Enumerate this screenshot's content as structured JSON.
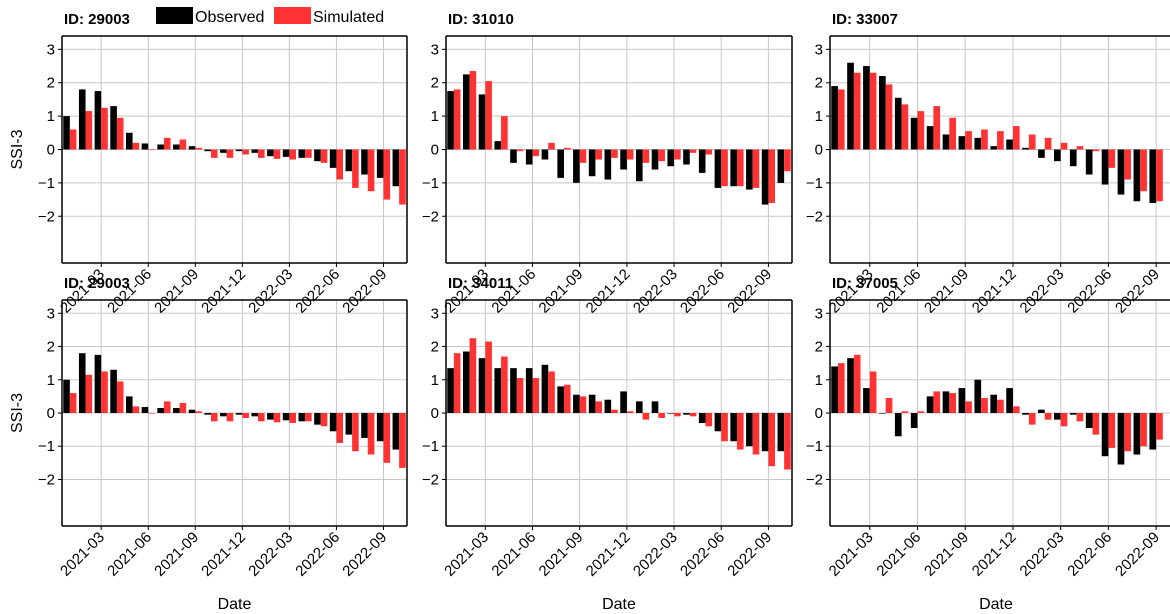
{
  "legend": {
    "entries": [
      {
        "label": "Observed",
        "color": "#000000"
      },
      {
        "label": "Simulated",
        "color": "#ff3333"
      }
    ]
  },
  "chart_data": [
    {
      "type": "bar",
      "title": "ID: 29003",
      "ylabel": "SSI-3",
      "xlabel": "",
      "ylim": [
        -3.4,
        3.4
      ],
      "yticks": [
        3,
        2,
        1,
        0,
        -1,
        -2
      ],
      "yticklabels": [
        "3",
        "2",
        "1",
        "0",
        "−1",
        "−2"
      ],
      "categories": [
        "2021-01",
        "2021-02",
        "2021-03",
        "2021-04",
        "2021-05",
        "2021-06",
        "2021-07",
        "2021-08",
        "2021-09",
        "2021-10",
        "2021-11",
        "2021-12",
        "2022-01",
        "2022-02",
        "2022-03",
        "2022-04",
        "2022-05",
        "2022-06",
        "2022-07",
        "2022-08",
        "2022-09",
        "2022-10"
      ],
      "xticklabels": [
        "2021-03",
        "2021-06",
        "2021-09",
        "2021-12",
        "2022-03",
        "2022-06",
        "2022-09"
      ],
      "xticks_at": [
        2,
        5,
        8,
        11,
        14,
        17,
        20
      ],
      "grid": true,
      "series": [
        {
          "name": "Observed",
          "color": "#000000",
          "values": [
            1.0,
            1.8,
            1.75,
            1.3,
            0.5,
            0.18,
            0.15,
            0.15,
            0.1,
            -0.05,
            -0.1,
            -0.05,
            -0.1,
            -0.2,
            -0.22,
            -0.25,
            -0.35,
            -0.55,
            -0.65,
            -0.75,
            -0.85,
            -1.1
          ]
        },
        {
          "name": "Simulated",
          "color": "#ff3333",
          "values": [
            0.6,
            1.15,
            1.25,
            0.95,
            0.2,
            0.0,
            0.35,
            0.3,
            0.05,
            -0.25,
            -0.25,
            -0.15,
            -0.25,
            -0.28,
            -0.3,
            -0.25,
            -0.4,
            -0.9,
            -1.15,
            -1.25,
            -1.5,
            -1.65
          ]
        }
      ]
    },
    {
      "type": "bar",
      "title": "ID: 31010",
      "ylabel": "",
      "xlabel": "",
      "ylim": [
        -3.4,
        3.4
      ],
      "yticks": [
        3,
        2,
        1,
        0,
        -1,
        -2
      ],
      "yticklabels": [
        "3",
        "2",
        "1",
        "0",
        "−1",
        "−2"
      ],
      "categories": [
        "2021-01",
        "2021-02",
        "2021-03",
        "2021-04",
        "2021-05",
        "2021-06",
        "2021-07",
        "2021-08",
        "2021-09",
        "2021-10",
        "2021-11",
        "2021-12",
        "2022-01",
        "2022-02",
        "2022-03",
        "2022-04",
        "2022-05",
        "2022-06",
        "2022-07",
        "2022-08",
        "2022-09",
        "2022-10"
      ],
      "xticklabels": [
        "2021-03",
        "2021-06",
        "2021-09",
        "2021-12",
        "2022-03",
        "2022-06",
        "2022-09"
      ],
      "xticks_at": [
        2,
        5,
        8,
        11,
        14,
        17,
        20
      ],
      "grid": true,
      "series": [
        {
          "name": "Observed",
          "color": "#000000",
          "values": [
            1.75,
            2.25,
            1.65,
            0.25,
            -0.4,
            -0.45,
            -0.3,
            -0.85,
            -1.0,
            -0.8,
            -0.9,
            -0.6,
            -0.95,
            -0.6,
            -0.5,
            -0.45,
            -0.7,
            -1.15,
            -1.1,
            -1.2,
            -1.65,
            -1.0
          ]
        },
        {
          "name": "Simulated",
          "color": "#ff3333",
          "values": [
            1.8,
            2.35,
            2.05,
            1.0,
            -0.05,
            -0.2,
            0.2,
            0.05,
            -0.4,
            -0.3,
            -0.25,
            -0.3,
            -0.4,
            -0.35,
            -0.3,
            -0.1,
            -0.15,
            -1.1,
            -1.1,
            -1.15,
            -1.6,
            -0.65
          ]
        }
      ]
    },
    {
      "type": "bar",
      "title": "ID: 33007",
      "ylabel": "",
      "xlabel": "",
      "ylim": [
        -3.4,
        3.4
      ],
      "yticks": [
        3,
        2,
        1,
        0,
        -1,
        -2
      ],
      "yticklabels": [
        "3",
        "2",
        "1",
        "0",
        "−1",
        "−2"
      ],
      "categories": [
        "2021-01",
        "2021-02",
        "2021-03",
        "2021-04",
        "2021-05",
        "2021-06",
        "2021-07",
        "2021-08",
        "2021-09",
        "2021-10",
        "2021-11",
        "2021-12",
        "2022-01",
        "2022-02",
        "2022-03",
        "2022-04",
        "2022-05",
        "2022-06",
        "2022-07",
        "2022-08",
        "2022-09"
      ],
      "xticklabels": [
        "2021-03",
        "2021-06",
        "2021-09",
        "2021-12",
        "2022-03",
        "2022-06",
        "2022-09"
      ],
      "xticks_at": [
        2,
        5,
        8,
        11,
        14,
        17,
        20
      ],
      "grid": true,
      "series": [
        {
          "name": "Observed",
          "color": "#000000",
          "values": [
            1.9,
            2.6,
            2.5,
            2.2,
            1.55,
            0.95,
            0.7,
            0.45,
            0.4,
            0.35,
            0.1,
            0.3,
            0.05,
            -0.25,
            -0.35,
            -0.5,
            -0.75,
            -1.05,
            -1.35,
            -1.55,
            -1.6
          ]
        },
        {
          "name": "Simulated",
          "color": "#ff3333",
          "values": [
            1.8,
            2.3,
            2.3,
            1.95,
            1.35,
            1.15,
            1.3,
            0.95,
            0.55,
            0.6,
            0.55,
            0.7,
            0.45,
            0.35,
            0.2,
            0.1,
            -0.05,
            -0.55,
            -0.9,
            -1.25,
            -1.55
          ]
        }
      ]
    },
    {
      "type": "bar",
      "title": "ID: 29003",
      "ylabel": "SSI-3",
      "xlabel": "Date",
      "ylim": [
        -3.4,
        3.4
      ],
      "yticks": [
        3,
        2,
        1,
        0,
        -1,
        -2
      ],
      "yticklabels": [
        "3",
        "2",
        "1",
        "0",
        "−1",
        "−2"
      ],
      "categories": [
        "2021-01",
        "2021-02",
        "2021-03",
        "2021-04",
        "2021-05",
        "2021-06",
        "2021-07",
        "2021-08",
        "2021-09",
        "2021-10",
        "2021-11",
        "2021-12",
        "2022-01",
        "2022-02",
        "2022-03",
        "2022-04",
        "2022-05",
        "2022-06",
        "2022-07",
        "2022-08",
        "2022-09",
        "2022-10"
      ],
      "xticklabels": [
        "2021-03",
        "2021-06",
        "2021-09",
        "2021-12",
        "2022-03",
        "2022-06",
        "2022-09"
      ],
      "xticks_at": [
        2,
        5,
        8,
        11,
        14,
        17,
        20
      ],
      "grid": true,
      "series": [
        {
          "name": "Observed",
          "color": "#000000",
          "values": [
            1.0,
            1.8,
            1.75,
            1.3,
            0.5,
            0.18,
            0.15,
            0.15,
            0.1,
            -0.05,
            -0.1,
            -0.05,
            -0.1,
            -0.2,
            -0.22,
            -0.25,
            -0.35,
            -0.55,
            -0.65,
            -0.75,
            -0.85,
            -1.1
          ]
        },
        {
          "name": "Simulated",
          "color": "#ff3333",
          "values": [
            0.6,
            1.15,
            1.25,
            0.95,
            0.2,
            0.0,
            0.35,
            0.3,
            0.05,
            -0.25,
            -0.25,
            -0.15,
            -0.25,
            -0.28,
            -0.3,
            -0.25,
            -0.4,
            -0.9,
            -1.15,
            -1.25,
            -1.5,
            -1.65
          ]
        }
      ]
    },
    {
      "type": "bar",
      "title": "ID: 34011",
      "ylabel": "",
      "xlabel": "Date",
      "ylim": [
        -3.4,
        3.4
      ],
      "yticks": [
        3,
        2,
        1,
        0,
        -1,
        -2
      ],
      "yticklabels": [
        "3",
        "2",
        "1",
        "0",
        "−1",
        "−2"
      ],
      "categories": [
        "2021-01",
        "2021-02",
        "2021-03",
        "2021-04",
        "2021-05",
        "2021-06",
        "2021-07",
        "2021-08",
        "2021-09",
        "2021-10",
        "2021-11",
        "2021-12",
        "2022-01",
        "2022-02",
        "2022-03",
        "2022-04",
        "2022-05",
        "2022-06",
        "2022-07",
        "2022-08",
        "2022-09",
        "2022-10"
      ],
      "xticklabels": [
        "2021-03",
        "2021-06",
        "2021-09",
        "2021-12",
        "2022-03",
        "2022-06",
        "2022-09"
      ],
      "xticks_at": [
        2,
        5,
        8,
        11,
        14,
        17,
        20
      ],
      "grid": true,
      "series": [
        {
          "name": "Observed",
          "color": "#000000",
          "values": [
            1.35,
            1.85,
            1.65,
            1.35,
            1.35,
            1.35,
            1.45,
            0.8,
            0.55,
            0.55,
            0.4,
            0.65,
            0.35,
            0.35,
            0.0,
            -0.05,
            -0.3,
            -0.55,
            -0.85,
            -1.0,
            -1.15,
            -1.15
          ]
        },
        {
          "name": "Simulated",
          "color": "#ff3333",
          "values": [
            1.8,
            2.25,
            2.15,
            1.7,
            1.05,
            1.05,
            1.25,
            0.85,
            0.5,
            0.35,
            0.1,
            0.05,
            -0.2,
            -0.15,
            -0.1,
            -0.1,
            -0.4,
            -0.85,
            -1.1,
            -1.25,
            -1.6,
            -1.7
          ]
        }
      ]
    },
    {
      "type": "bar",
      "title": "ID: 37005",
      "ylabel": "",
      "xlabel": "Date",
      "ylim": [
        -3.4,
        3.4
      ],
      "yticks": [
        3,
        2,
        1,
        0,
        -1,
        -2
      ],
      "yticklabels": [
        "3",
        "2",
        "1",
        "0",
        "−1",
        "−2"
      ],
      "categories": [
        "2021-01",
        "2021-02",
        "2021-03",
        "2021-04",
        "2021-05",
        "2021-06",
        "2021-07",
        "2021-08",
        "2021-09",
        "2021-10",
        "2021-11",
        "2021-12",
        "2022-01",
        "2022-02",
        "2022-03",
        "2022-04",
        "2022-05",
        "2022-06",
        "2022-07",
        "2022-08",
        "2022-09"
      ],
      "xticklabels": [
        "2021-03",
        "2021-06",
        "2021-09",
        "2021-12",
        "2022-03",
        "2022-06",
        "2022-09"
      ],
      "xticks_at": [
        2,
        5,
        8,
        11,
        14,
        17,
        20
      ],
      "grid": true,
      "series": [
        {
          "name": "Observed",
          "color": "#000000",
          "values": [
            1.4,
            1.65,
            0.75,
            0.0,
            -0.7,
            -0.45,
            0.5,
            0.65,
            0.75,
            1.0,
            0.55,
            0.75,
            -0.05,
            0.1,
            -0.2,
            -0.05,
            -0.45,
            -1.3,
            -1.55,
            -1.25,
            -1.1
          ]
        },
        {
          "name": "Simulated",
          "color": "#ff3333",
          "values": [
            1.5,
            1.75,
            1.25,
            0.45,
            0.05,
            0.05,
            0.65,
            0.6,
            0.35,
            0.45,
            0.4,
            0.2,
            -0.35,
            -0.2,
            -0.4,
            -0.25,
            -0.65,
            -1.05,
            -1.15,
            -1.0,
            -0.8
          ]
        }
      ]
    }
  ]
}
